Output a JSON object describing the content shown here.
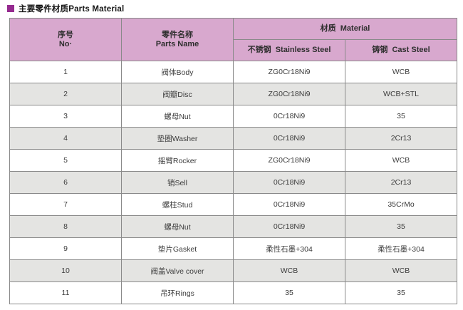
{
  "title": {
    "text": "主要零件材质Parts Material"
  },
  "colors": {
    "title_square": "#952a8f",
    "header_bg": "#d8a8ce",
    "row_alt_bg": "#e4e4e2",
    "border": "#8a8a8a",
    "cell_text": "#3c3c3c"
  },
  "table": {
    "header": {
      "no_zh": "序号",
      "no_en": "No·",
      "parts_zh": "零件名称",
      "parts_en": "Parts Name",
      "material_label": "材质  Material",
      "stainless_label": "不锈钢  Stainless Steel",
      "cast_label": "铸钢  Cast Steel"
    },
    "rows": [
      {
        "no": "1",
        "part": "阀体Body",
        "stainless": "ZG0Cr18Ni9",
        "cast": "WCB"
      },
      {
        "no": "2",
        "part": "阀瓣Disc",
        "stainless": "ZG0Cr18Ni9",
        "cast": "WCB+STL"
      },
      {
        "no": "3",
        "part": "螺母Nut",
        "stainless": "0Cr18Ni9",
        "cast": "35"
      },
      {
        "no": "4",
        "part": "垫圈Washer",
        "stainless": "0Cr18Ni9",
        "cast": "2Cr13"
      },
      {
        "no": "5",
        "part": "摇臂Rocker",
        "stainless": "ZG0Cr18Ni9",
        "cast": "WCB"
      },
      {
        "no": "6",
        "part": "销Sell",
        "stainless": "0Cr18Ni9",
        "cast": "2Cr13"
      },
      {
        "no": "7",
        "part": "螺柱Stud",
        "stainless": "0Cr18Ni9",
        "cast": "35CrMo"
      },
      {
        "no": "8",
        "part": "螺母Nut",
        "stainless": "0Cr18Ni9",
        "cast": "35"
      },
      {
        "no": "9",
        "part": "垫片Gasket",
        "stainless": "柔性石墨+304",
        "cast": "柔性石墨+304"
      },
      {
        "no": "10",
        "part": "阀盖Valve cover",
        "stainless": "WCB",
        "cast": "WCB"
      },
      {
        "no": "11",
        "part": "吊环Rings",
        "stainless": "35",
        "cast": "35"
      }
    ]
  }
}
